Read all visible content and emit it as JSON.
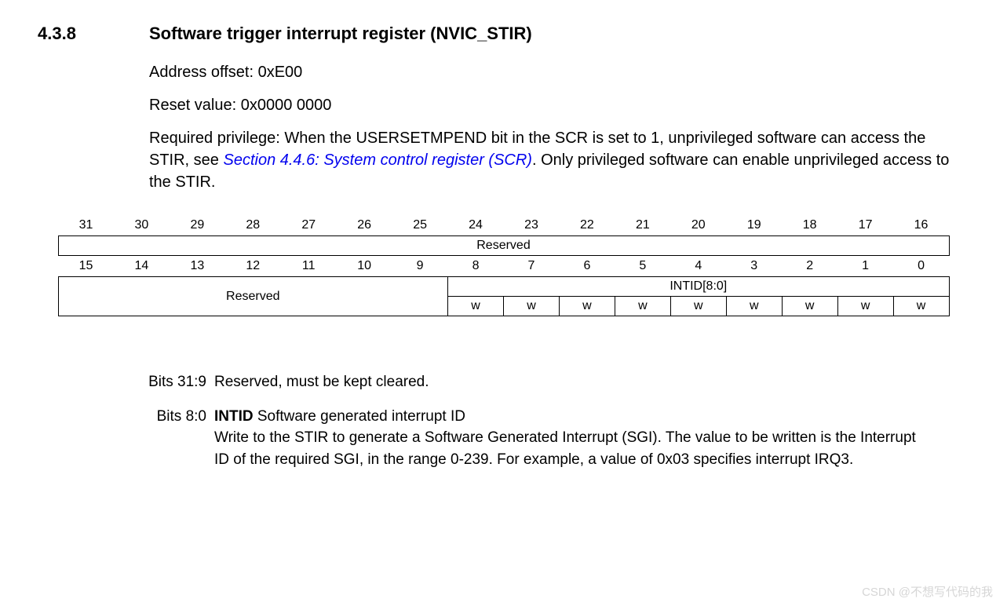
{
  "section": {
    "number": "4.3.8",
    "title": "Software trigger interrupt register (NVIC_STIR)"
  },
  "info": {
    "address_offset": "Address offset: 0xE00",
    "reset_value": "Reset value: 0x0000 0000",
    "privilege_prefix": "Required privilege: When the USERSETMPEND bit in the SCR is set to 1, unprivileged software can access the STIR, see ",
    "privilege_link": "Section 4.4.6: System control register (SCR)",
    "privilege_suffix": ". Only privileged software can enable unprivileged access to the STIR."
  },
  "register_table": {
    "bits_high": [
      "31",
      "30",
      "29",
      "28",
      "27",
      "26",
      "25",
      "24",
      "23",
      "22",
      "21",
      "20",
      "19",
      "18",
      "17",
      "16"
    ],
    "bits_low": [
      "15",
      "14",
      "13",
      "12",
      "11",
      "10",
      "9",
      "8",
      "7",
      "6",
      "5",
      "4",
      "3",
      "2",
      "1",
      "0"
    ],
    "row_high_field": "Reserved",
    "row_low_reserved": "Reserved",
    "row_low_intid": "INTID[8:0]",
    "access_w": "w",
    "colors": {
      "border": "#000000",
      "background": "#ffffff",
      "text": "#000000",
      "link": "#0000ee"
    },
    "font_size_bitnum": 16,
    "font_size_field": 16,
    "reserved_span_high": 16,
    "reserved_span_low": 7,
    "intid_span": 9
  },
  "bit_descriptions": {
    "item1": {
      "range": "Bits 31:9",
      "text": "Reserved, must be kept cleared."
    },
    "item2": {
      "range": "Bits 8:0",
      "name": "INTID",
      "title_rest": " Software generated interrupt ID",
      "body": "Write to the STIR to generate a Software Generated Interrupt (SGI). The value to be written is the Interrupt ID of the required SGI, in the range 0-239. For example, a value of 0x03 specifies interrupt IRQ3."
    }
  },
  "watermark": "CSDN @不想写代码的我"
}
